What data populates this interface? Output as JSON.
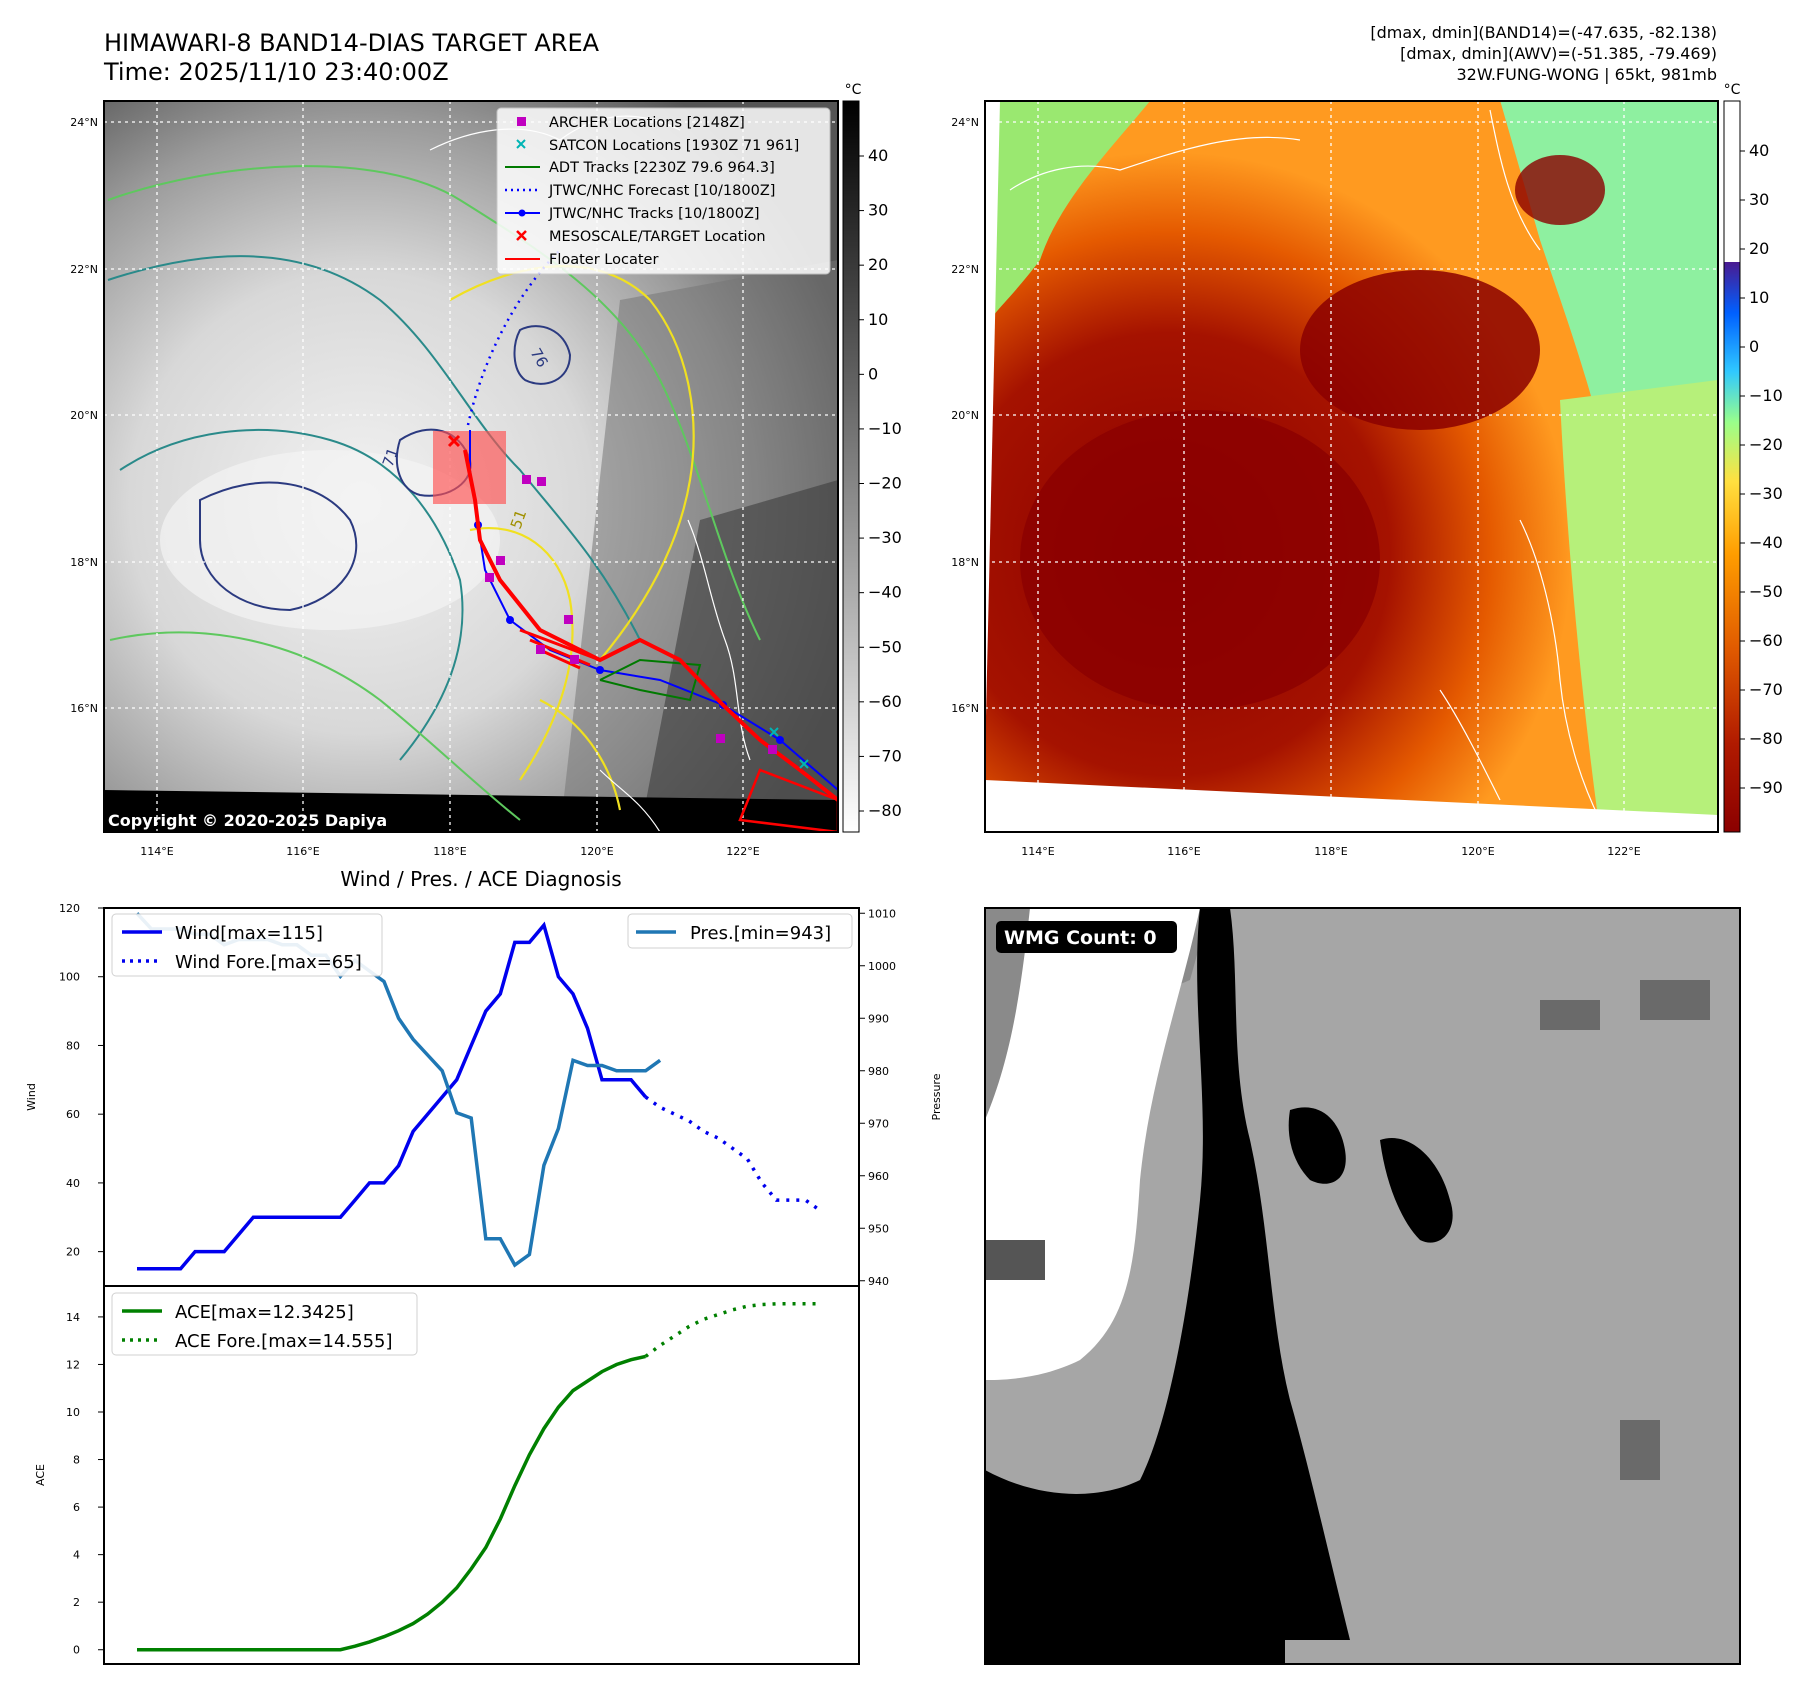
{
  "header": {
    "title_line1": "HIMAWARI-8 BAND14-DIAS TARGET AREA",
    "title_line2": "Time: 2025/11/10 23:40:00Z",
    "info_line1": "[dmax, dmin](BAND14)=(-47.635, -82.138)",
    "info_line2": "[dmax, dmin](AWV)=(-51.385, -79.469)",
    "info_line3": "32W.FUNG-WONG | 65kt, 981mb"
  },
  "map": {
    "lat_labels": [
      "24°N",
      "22°N",
      "20°N",
      "18°N",
      "16°N"
    ],
    "lon_labels": [
      "114°E",
      "116°E",
      "118°E",
      "120°E",
      "122°E"
    ],
    "copyright": "Copyright © 2020-2025 Dapiya",
    "contour_labels": [
      "76",
      "71",
      "51"
    ]
  },
  "legend": {
    "items": [
      {
        "label": "ARCHER Locations [2148Z]",
        "color": "#c000c0",
        "kind": "square"
      },
      {
        "label": "SATCON Locations [1930Z 71 961]",
        "color": "#00b5b5",
        "kind": "x"
      },
      {
        "label": "ADT Tracks [2230Z 79.6 964.3]",
        "color": "#007a00",
        "kind": "line"
      },
      {
        "label": "JTWC/NHC Forecast [10/1800Z]",
        "color": "#0000ff",
        "kind": "dotted"
      },
      {
        "label": "JTWC/NHC Tracks [10/1800Z]",
        "color": "#0000ff",
        "kind": "line-dot"
      },
      {
        "label": "MESOSCALE/TARGET Location",
        "color": "#ff0000",
        "kind": "x"
      },
      {
        "label": "Floater Locater",
        "color": "#ff0000",
        "kind": "line"
      }
    ]
  },
  "colorbar_gray": {
    "unit": "°C",
    "ticks": [
      "40",
      "30",
      "20",
      "10",
      "0",
      "−10",
      "−20",
      "−30",
      "−40",
      "−50",
      "−60",
      "−70",
      "−80"
    ]
  },
  "colorbar_color": {
    "unit": "°C",
    "ticks": [
      "40",
      "30",
      "20",
      "10",
      "0",
      "−10",
      "−20",
      "−30",
      "−40",
      "−50",
      "−60",
      "−70",
      "−80",
      "−90"
    ]
  },
  "wmg": {
    "label": "WMG Count: 0"
  },
  "colors": {
    "wind": "#0000ee",
    "pressure": "#1f77b4",
    "ace": "#008000",
    "track_red": "#ff0000"
  },
  "chart_data": [
    {
      "type": "line",
      "title": "Wind / Pres. / ACE Diagnosis",
      "ylabel": "Wind",
      "ylabel_right": "Pressure",
      "ylim": [
        10,
        120
      ],
      "ylim_right": [
        939,
        1011
      ],
      "yticks": [
        "20",
        "40",
        "60",
        "80",
        "100",
        "120"
      ],
      "yticks_right": [
        "940",
        "950",
        "960",
        "970",
        "980",
        "990",
        "1000",
        "1010"
      ],
      "legend_left": [
        "Wind[max=115]",
        "Wind Fore.[max=65]"
      ],
      "legend_right": [
        "Pres.[min=943]"
      ],
      "series": [
        {
          "name": "Wind[max=115]",
          "x": [
            0,
            1,
            2,
            3,
            4,
            5,
            6,
            7,
            8,
            9,
            10,
            11,
            12,
            13,
            14,
            15,
            16,
            17,
            18,
            19,
            20,
            21,
            22,
            23,
            24,
            25,
            26,
            27,
            28,
            29,
            30,
            31,
            32,
            33,
            34,
            35
          ],
          "values": [
            15,
            15,
            15,
            15,
            20,
            20,
            20,
            25,
            30,
            30,
            30,
            30,
            30,
            30,
            30,
            35,
            40,
            40,
            45,
            55,
            60,
            65,
            70,
            80,
            90,
            95,
            110,
            110,
            115,
            100,
            95,
            85,
            70,
            70,
            70,
            65
          ]
        },
        {
          "name": "Wind Fore.[max=65]",
          "x": [
            35,
            36,
            37,
            38,
            39,
            40,
            41,
            42,
            43,
            44,
            45,
            46,
            47
          ],
          "values": [
            65,
            62,
            60,
            58,
            55,
            53,
            50,
            47,
            40,
            35,
            35,
            35,
            32
          ]
        },
        {
          "name": "Pres.[min=943]",
          "x": [
            0,
            1,
            2,
            3,
            4,
            5,
            6,
            7,
            8,
            9,
            10,
            11,
            12,
            13,
            14,
            15,
            16,
            17,
            18,
            19,
            20,
            21,
            22,
            23,
            24,
            25,
            26,
            27,
            28,
            29,
            30,
            31,
            32,
            33,
            34,
            35,
            36
          ],
          "values": [
            1010,
            1007,
            1007,
            1007,
            1006,
            1006,
            1004,
            1005,
            1005,
            1005,
            1004,
            1004,
            1002,
            1002,
            998,
            1001,
            999,
            997,
            990,
            986,
            983,
            980,
            972,
            971,
            948,
            948,
            943,
            945,
            962,
            969,
            982,
            981,
            981,
            980,
            980,
            980,
            982
          ]
        }
      ]
    },
    {
      "type": "line",
      "ylabel": "ACE",
      "ylim": [
        -0.6,
        15.3
      ],
      "yticks": [
        "0",
        "2",
        "4",
        "6",
        "8",
        "10",
        "12",
        "14"
      ],
      "legend": [
        "ACE[max=12.3425]",
        "ACE Fore.[max=14.555]"
      ],
      "series": [
        {
          "name": "ACE[max=12.3425]",
          "x": [
            0,
            2,
            4,
            6,
            8,
            10,
            12,
            13,
            14,
            15,
            16,
            17,
            18,
            19,
            20,
            21,
            22,
            23,
            24,
            25,
            26,
            27,
            28,
            29,
            30,
            31,
            32,
            33,
            34,
            35
          ],
          "values": [
            0,
            0,
            0,
            0,
            0,
            0,
            0,
            0,
            0,
            0.15,
            0.33,
            0.55,
            0.8,
            1.1,
            1.5,
            2.0,
            2.6,
            3.4,
            4.3,
            5.5,
            6.9,
            8.2,
            9.3,
            10.2,
            10.9,
            11.3,
            11.7,
            12.0,
            12.2,
            12.34
          ]
        },
        {
          "name": "ACE Fore.[max=14.555]",
          "x": [
            35,
            36,
            37,
            38,
            39,
            40,
            41,
            42,
            43,
            44,
            45,
            46,
            47
          ],
          "values": [
            12.34,
            12.8,
            13.2,
            13.6,
            13.9,
            14.1,
            14.3,
            14.45,
            14.52,
            14.55,
            14.555,
            14.555,
            14.555
          ]
        }
      ]
    }
  ]
}
